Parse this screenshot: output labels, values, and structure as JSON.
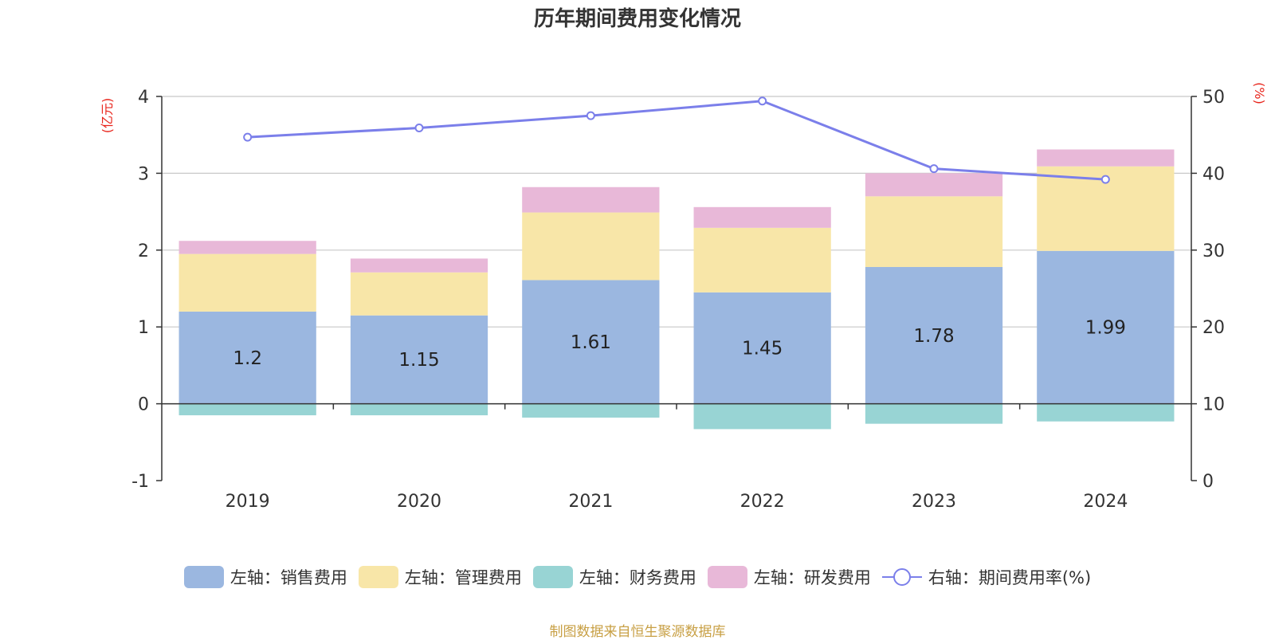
{
  "chart_data": {
    "type": "bar",
    "title": "历年期间费用变化情况",
    "categories": [
      "2019",
      "2020",
      "2021",
      "2022",
      "2023",
      "2024"
    ],
    "series": [
      {
        "name": "左轴：销售费用",
        "axis": "left",
        "color": "#9bb7e0",
        "values": [
          1.2,
          1.15,
          1.61,
          1.45,
          1.78,
          1.99
        ],
        "show_labels": true
      },
      {
        "name": "左轴：管理费用",
        "axis": "left",
        "color": "#f8e6a8",
        "values": [
          0.75,
          0.56,
          0.88,
          0.84,
          0.92,
          1.1
        ],
        "show_labels": false
      },
      {
        "name": "左轴：财务费用",
        "axis": "left",
        "color": "#98d4d4",
        "values": [
          -0.15,
          -0.15,
          -0.18,
          -0.33,
          -0.26,
          -0.23
        ],
        "show_labels": false
      },
      {
        "name": "左轴：研发费用",
        "axis": "left",
        "color": "#e8b8d8",
        "values": [
          0.17,
          0.18,
          0.33,
          0.27,
          0.3,
          0.22
        ],
        "show_labels": false
      },
      {
        "name": "右轴：期间费用率(%)",
        "axis": "right",
        "type": "line",
        "color": "#7b7fea",
        "values": [
          44.7,
          45.9,
          47.5,
          49.4,
          40.6,
          39.2
        ]
      }
    ],
    "left_axis": {
      "label": "(亿元)",
      "ylim": [
        -1,
        4
      ],
      "ticks": [
        -1,
        0,
        1,
        2,
        3,
        4
      ]
    },
    "right_axis": {
      "label": "(%)",
      "ylim": [
        0,
        50
      ],
      "ticks": [
        0,
        10,
        20,
        30,
        40,
        50
      ]
    },
    "grid": true,
    "legend_position": "bottom"
  },
  "source_note": "制图数据来自恒生聚源数据库"
}
